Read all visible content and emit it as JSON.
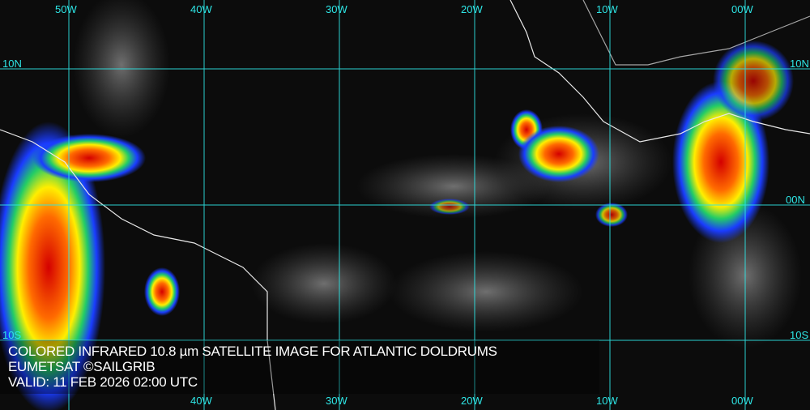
{
  "caption": {
    "line1": "COLORED INFRARED 10.8 µm SATELLITE IMAGE FOR ATLANTIC DOLDRUMS",
    "line2": "EUMETSAT ©SAILGRIB",
    "line3": "VALID:  11 FEB 2026 02:00 UTC"
  },
  "longitudes": [
    "50W",
    "40W",
    "30W",
    "20W",
    "10W",
    "00W"
  ],
  "bottom_longitudes": [
    "40W",
    "30W",
    "20W",
    "10W",
    "00W"
  ],
  "latitudes": {
    "north": "10N",
    "equator": "00N",
    "south": "10S"
  },
  "colors": {
    "grid": "#2ee6e6",
    "text": "#ffffff",
    "background": "#0c0c0c"
  }
}
